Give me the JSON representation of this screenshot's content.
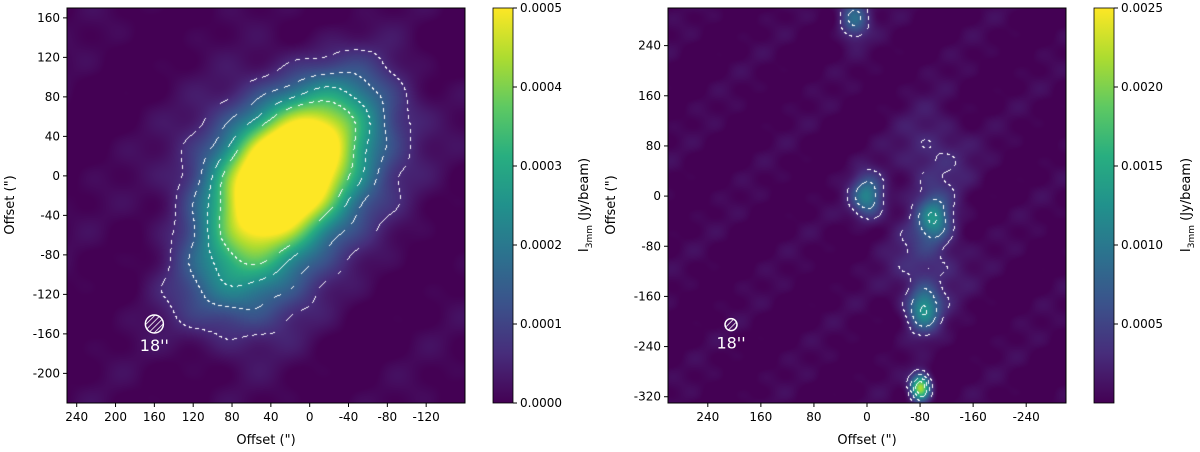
{
  "chart_data": [
    {
      "type": "heatmap",
      "xlabel": "Offset (\")",
      "ylabel": "Offset (\")",
      "xlim": [
        250,
        -160
      ],
      "ylim": [
        -230,
        170
      ],
      "x_inverted": true,
      "xticks": [
        240,
        200,
        160,
        120,
        80,
        40,
        0,
        -40,
        -80,
        -120
      ],
      "xtick_labels": [
        "240",
        "200",
        "160",
        "120",
        "80",
        "40",
        "0",
        "-40",
        "-80",
        "-120"
      ],
      "yticks": [
        160,
        120,
        80,
        40,
        0,
        -40,
        -80,
        -120,
        -160,
        -200
      ],
      "ytick_labels": [
        "160",
        "120",
        "80",
        "40",
        "0",
        "-40",
        "-80",
        "-120",
        "-160",
        "-200"
      ],
      "colormap": "viridis",
      "colorbar": {
        "label_main": "I",
        "label_sub": "3mm",
        "label_unit": " (Jy/beam)",
        "range": [
          0,
          0.0005
        ],
        "ticks": [
          0,
          0.0001,
          0.0002,
          0.0003,
          0.0004,
          0.0005
        ],
        "tick_labels": [
          "0.0000",
          "0.0001",
          "0.0002",
          "0.0003",
          "0.0004",
          "0.0005"
        ]
      },
      "beam": {
        "label": "18''",
        "x": 160,
        "y": -150
      },
      "contours": {
        "style": "dashed",
        "color": "#ffffff"
      },
      "emission_components": [
        {
          "x": 20,
          "y": 5,
          "amplitude": 0.00048
        },
        {
          "x": 45,
          "y": -25,
          "amplitude": 0.00028
        },
        {
          "x": 60,
          "y": -75,
          "amplitude": 0.00021
        },
        {
          "x": 0,
          "y": 40,
          "amplitude": 0.0002
        },
        {
          "x": -40,
          "y": 70,
          "amplitude": 0.00015
        },
        {
          "x": 80,
          "y": -120,
          "amplitude": 0.00012
        }
      ]
    },
    {
      "type": "heatmap",
      "xlabel": "Offset (\")",
      "ylabel": "Offset (\")",
      "xlim": [
        300,
        -300
      ],
      "ylim": [
        -330,
        300
      ],
      "x_inverted": true,
      "xticks": [
        240,
        160,
        80,
        0,
        -80,
        -160,
        -240
      ],
      "xtick_labels": [
        "240",
        "160",
        "80",
        "0",
        "-80",
        "-160",
        "-240"
      ],
      "yticks": [
        240,
        160,
        80,
        0,
        -80,
        -160,
        -240,
        -320
      ],
      "ytick_labels": [
        "240",
        "160",
        "80",
        "0",
        "-80",
        "-160",
        "-240",
        "-320"
      ],
      "colormap": "viridis",
      "colorbar": {
        "label_main": "I",
        "label_sub": "3mm",
        "label_unit": " (Jy/beam)",
        "range": [
          0,
          0.0025
        ],
        "ticks": [
          0.0005,
          0.001,
          0.0015,
          0.002,
          0.0025
        ],
        "tick_labels": [
          "0.0005",
          "0.0010",
          "0.0015",
          "0.0020",
          "0.0025"
        ]
      },
      "beam": {
        "label": "18''",
        "x": 205,
        "y": -205
      },
      "contours": {
        "style": "dashed",
        "color": "#ffffff"
      },
      "emission_components": [
        {
          "x": 20,
          "y": 285,
          "amplitude": 0.0009
        },
        {
          "x": 0,
          "y": 0,
          "amplitude": 0.0011
        },
        {
          "x": -100,
          "y": -35,
          "amplitude": 0.001
        },
        {
          "x": -85,
          "y": -180,
          "amplitude": 0.0012
        },
        {
          "x": -80,
          "y": -305,
          "amplitude": 0.0022
        },
        {
          "x": -90,
          "y": -100,
          "amplitude": 0.0004
        },
        {
          "x": -100,
          "y": 60,
          "amplitude": 0.00035
        }
      ]
    }
  ]
}
